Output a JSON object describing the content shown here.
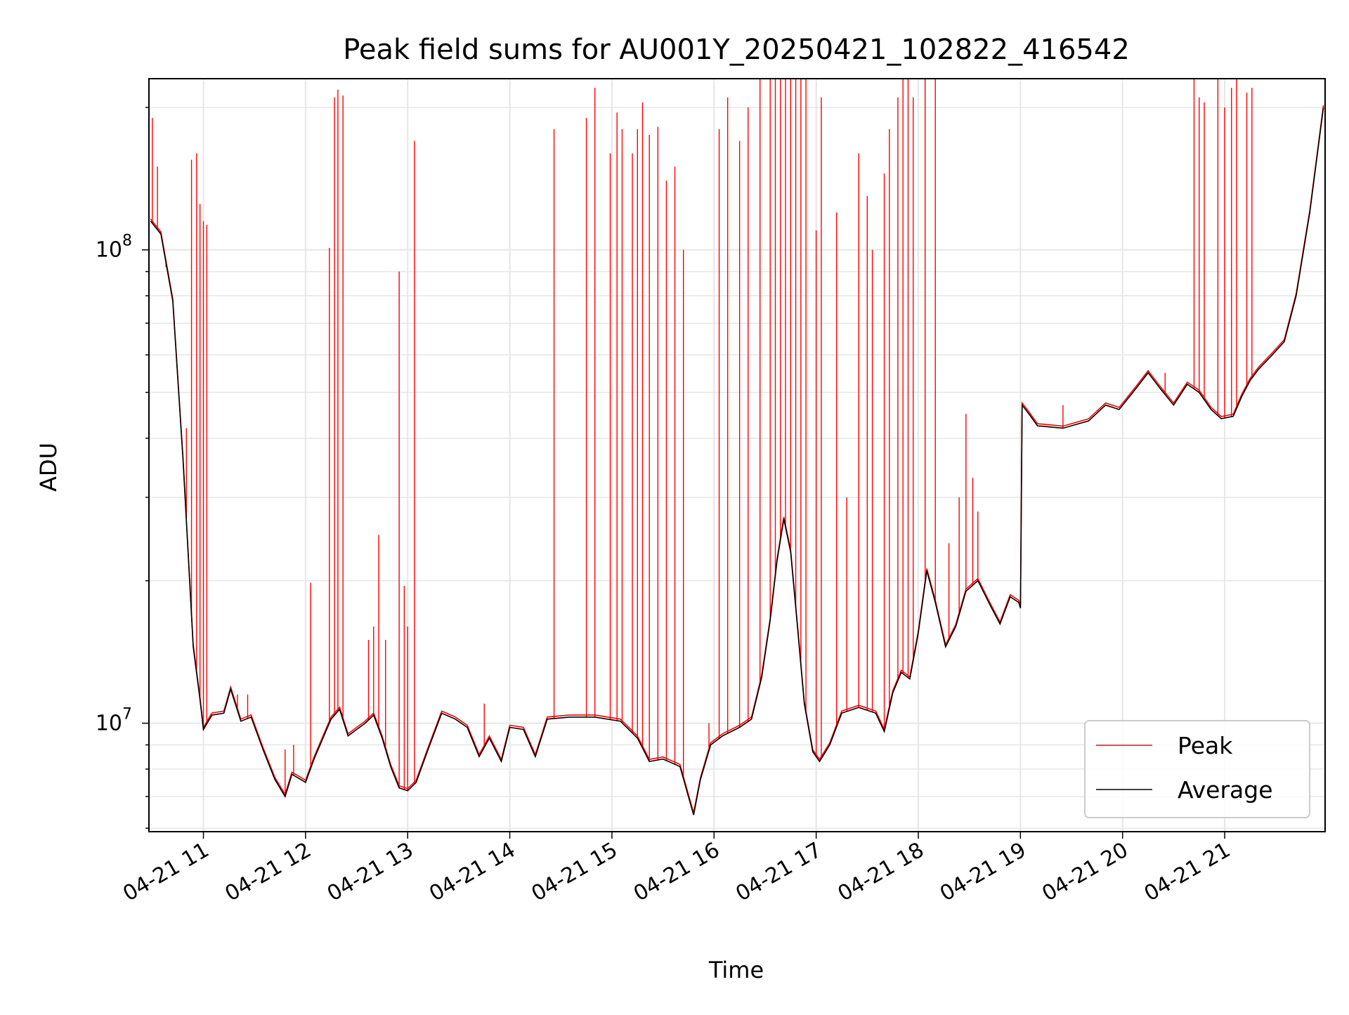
{
  "chart_data": {
    "type": "line",
    "title": "Peak field sums for AU001Y_20250421_102822_416542",
    "xlabel": "Time",
    "ylabel": "ADU",
    "y_scale": "log",
    "ylim": [
      5900000,
      230000000
    ],
    "xlim": [
      "2025-04-21 10:28",
      "2025-04-21 21:59"
    ],
    "x_ticks": [
      "04-21 11",
      "04-21 12",
      "04-21 13",
      "04-21 14",
      "04-21 15",
      "04-21 16",
      "04-21 17",
      "04-21 18",
      "04-21 19",
      "04-21 20",
      "04-21 21"
    ],
    "y_ticks": [
      {
        "value": 10000000,
        "base": "10",
        "exp": "7"
      },
      {
        "value": 100000000,
        "base": "10",
        "exp": "8"
      }
    ],
    "grid": true,
    "legend_position": "bottom-right",
    "series": [
      {
        "name": "Average",
        "color": "#000000",
        "points": [
          [
            "2025-04-21 10:29",
            115000000
          ],
          [
            "2025-04-21 10:35",
            108000000
          ],
          [
            "2025-04-21 10:42",
            78000000
          ],
          [
            "2025-04-21 10:48",
            36000000
          ],
          [
            "2025-04-21 10:54",
            14500000
          ],
          [
            "2025-04-21 10:58",
            11200000
          ],
          [
            "2025-04-21 11:00",
            9700000
          ],
          [
            "2025-04-21 11:05",
            10400000
          ],
          [
            "2025-04-21 11:12",
            10500000
          ],
          [
            "2025-04-21 11:16",
            11800000
          ],
          [
            "2025-04-21 11:22",
            10100000
          ],
          [
            "2025-04-21 11:28",
            10300000
          ],
          [
            "2025-04-21 11:35",
            8800000
          ],
          [
            "2025-04-21 11:42",
            7600000
          ],
          [
            "2025-04-21 11:48",
            7000000
          ],
          [
            "2025-04-21 11:52",
            7800000
          ],
          [
            "2025-04-21 12:00",
            7500000
          ],
          [
            "2025-04-21 12:05",
            8400000
          ],
          [
            "2025-04-21 12:15",
            10200000
          ],
          [
            "2025-04-21 12:20",
            10700000
          ],
          [
            "2025-04-21 12:25",
            9400000
          ],
          [
            "2025-04-21 12:30",
            9700000
          ],
          [
            "2025-04-21 12:35",
            10000000
          ],
          [
            "2025-04-21 12:40",
            10400000
          ],
          [
            "2025-04-21 12:45",
            9300000
          ],
          [
            "2025-04-21 12:50",
            8100000
          ],
          [
            "2025-04-21 12:55",
            7300000
          ],
          [
            "2025-04-21 13:00",
            7200000
          ],
          [
            "2025-04-21 13:05",
            7500000
          ],
          [
            "2025-04-21 13:12",
            8800000
          ],
          [
            "2025-04-21 13:20",
            10500000
          ],
          [
            "2025-04-21 13:28",
            10200000
          ],
          [
            "2025-04-21 13:35",
            9800000
          ],
          [
            "2025-04-21 13:42",
            8500000
          ],
          [
            "2025-04-21 13:48",
            9300000
          ],
          [
            "2025-04-21 13:55",
            8300000
          ],
          [
            "2025-04-21 14:00",
            9800000
          ],
          [
            "2025-04-21 14:08",
            9700000
          ],
          [
            "2025-04-21 14:15",
            8500000
          ],
          [
            "2025-04-21 14:22",
            10200000
          ],
          [
            "2025-04-21 14:35",
            10300000
          ],
          [
            "2025-04-21 14:50",
            10300000
          ],
          [
            "2025-04-21 15:05",
            10100000
          ],
          [
            "2025-04-21 15:15",
            9300000
          ],
          [
            "2025-04-21 15:22",
            8300000
          ],
          [
            "2025-04-21 15:30",
            8400000
          ],
          [
            "2025-04-21 15:40",
            8100000
          ],
          [
            "2025-04-21 15:48",
            6400000
          ],
          [
            "2025-04-21 15:52",
            7600000
          ],
          [
            "2025-04-21 15:58",
            9000000
          ],
          [
            "2025-04-21 16:05",
            9400000
          ],
          [
            "2025-04-21 16:15",
            9800000
          ],
          [
            "2025-04-21 16:22",
            10200000
          ],
          [
            "2025-04-21 16:28",
            12500000
          ],
          [
            "2025-04-21 16:33",
            16500000
          ],
          [
            "2025-04-21 16:37",
            22000000
          ],
          [
            "2025-04-21 16:41",
            27000000
          ],
          [
            "2025-04-21 16:45",
            23000000
          ],
          [
            "2025-04-21 16:49",
            16000000
          ],
          [
            "2025-04-21 16:53",
            11000000
          ],
          [
            "2025-04-21 16:58",
            8700000
          ],
          [
            "2025-04-21 17:02",
            8300000
          ],
          [
            "2025-04-21 17:08",
            9000000
          ],
          [
            "2025-04-21 17:15",
            10500000
          ],
          [
            "2025-04-21 17:25",
            10800000
          ],
          [
            "2025-04-21 17:35",
            10500000
          ],
          [
            "2025-04-21 17:40",
            9600000
          ],
          [
            "2025-04-21 17:45",
            11600000
          ],
          [
            "2025-04-21 17:50",
            12800000
          ],
          [
            "2025-04-21 17:55",
            12400000
          ],
          [
            "2025-04-21 18:00",
            15500000
          ],
          [
            "2025-04-21 18:05",
            21000000
          ],
          [
            "2025-04-21 18:10",
            18000000
          ],
          [
            "2025-04-21 18:16",
            14500000
          ],
          [
            "2025-04-21 18:22",
            16000000
          ],
          [
            "2025-04-21 18:28",
            19000000
          ],
          [
            "2025-04-21 18:35",
            20000000
          ],
          [
            "2025-04-21 18:42",
            17800000
          ],
          [
            "2025-04-21 18:48",
            16200000
          ],
          [
            "2025-04-21 18:54",
            18500000
          ],
          [
            "2025-04-21 18:59",
            18000000
          ],
          [
            "2025-04-21 19:00",
            17500000
          ],
          [
            "2025-04-21 19:01",
            47000000
          ],
          [
            "2025-04-21 19:05",
            45000000
          ],
          [
            "2025-04-21 19:10",
            42500000
          ],
          [
            "2025-04-21 19:25",
            42000000
          ],
          [
            "2025-04-21 19:40",
            43500000
          ],
          [
            "2025-04-21 19:50",
            47000000
          ],
          [
            "2025-04-21 19:58",
            46000000
          ],
          [
            "2025-04-21 20:08",
            51000000
          ],
          [
            "2025-04-21 20:15",
            55000000
          ],
          [
            "2025-04-21 20:22",
            51000000
          ],
          [
            "2025-04-21 20:30",
            47000000
          ],
          [
            "2025-04-21 20:38",
            52000000
          ],
          [
            "2025-04-21 20:45",
            50000000
          ],
          [
            "2025-04-21 20:52",
            46000000
          ],
          [
            "2025-04-21 20:58",
            44000000
          ],
          [
            "2025-04-21 21:05",
            44500000
          ],
          [
            "2025-04-21 21:10",
            49000000
          ],
          [
            "2025-04-21 21:15",
            53000000
          ],
          [
            "2025-04-21 21:20",
            56000000
          ],
          [
            "2025-04-21 21:28",
            60000000
          ],
          [
            "2025-04-21 21:35",
            64000000
          ],
          [
            "2025-04-21 21:42",
            80000000
          ],
          [
            "2025-04-21 21:50",
            120000000
          ],
          [
            "2025-04-21 21:58",
            200000000
          ]
        ]
      },
      {
        "name": "Peak",
        "color": "#ff0000",
        "spikes": [
          [
            "2025-04-21 10:30",
            190000000
          ],
          [
            "2025-04-21 10:33",
            150000000
          ],
          [
            "2025-04-21 10:38",
            92000000
          ],
          [
            "2025-04-21 10:44",
            60000000
          ],
          [
            "2025-04-21 10:50",
            42000000
          ],
          [
            "2025-04-21 10:53",
            155000000
          ],
          [
            "2025-04-21 10:56",
            160000000
          ],
          [
            "2025-04-21 10:58",
            125000000
          ],
          [
            "2025-04-21 11:00",
            115000000
          ],
          [
            "2025-04-21 11:02",
            113000000
          ],
          [
            "2025-04-21 11:20",
            11500000
          ],
          [
            "2025-04-21 11:26",
            11500000
          ],
          [
            "2025-04-21 11:48",
            8800000
          ],
          [
            "2025-04-21 11:53",
            9000000
          ],
          [
            "2025-04-21 12:03",
            19800000
          ],
          [
            "2025-04-21 12:14",
            101000000
          ],
          [
            "2025-04-21 12:17",
            210000000
          ],
          [
            "2025-04-21 12:19",
            218000000
          ],
          [
            "2025-04-21 12:22",
            212000000
          ],
          [
            "2025-04-21 12:37",
            15000000
          ],
          [
            "2025-04-21 12:40",
            16000000
          ],
          [
            "2025-04-21 12:43",
            25000000
          ],
          [
            "2025-04-21 12:47",
            15000000
          ],
          [
            "2025-04-21 12:55",
            90000000
          ],
          [
            "2025-04-21 12:58",
            19500000
          ],
          [
            "2025-04-21 13:00",
            16000000
          ],
          [
            "2025-04-21 13:04",
            170000000
          ],
          [
            "2025-04-21 13:45",
            11000000
          ],
          [
            "2025-04-21 14:26",
            180000000
          ],
          [
            "2025-04-21 14:45",
            190000000
          ],
          [
            "2025-04-21 14:50",
            220000000
          ],
          [
            "2025-04-21 14:59",
            160000000
          ],
          [
            "2025-04-21 15:03",
            195000000
          ],
          [
            "2025-04-21 15:06",
            180000000
          ],
          [
            "2025-04-21 15:12",
            160000000
          ],
          [
            "2025-04-21 15:15",
            180000000
          ],
          [
            "2025-04-21 15:18",
            205000000
          ],
          [
            "2025-04-21 15:22",
            175000000
          ],
          [
            "2025-04-21 15:27",
            182000000
          ],
          [
            "2025-04-21 15:32",
            140000000
          ],
          [
            "2025-04-21 15:37",
            150000000
          ],
          [
            "2025-04-21 15:42",
            100000000
          ],
          [
            "2025-04-21 15:57",
            10000000
          ],
          [
            "2025-04-21 16:03",
            180000000
          ],
          [
            "2025-04-21 16:08",
            210000000
          ],
          [
            "2025-04-21 16:15",
            170000000
          ],
          [
            "2025-04-21 16:20",
            200000000
          ],
          [
            "2025-04-21 16:27",
            230000000
          ],
          [
            "2025-04-21 16:33",
            230000000
          ],
          [
            "2025-04-21 16:36",
            230000000
          ],
          [
            "2025-04-21 16:39",
            230000000
          ],
          [
            "2025-04-21 16:42",
            230000000
          ],
          [
            "2025-04-21 16:45",
            230000000
          ],
          [
            "2025-04-21 16:48",
            230000000
          ],
          [
            "2025-04-21 16:51",
            230000000
          ],
          [
            "2025-04-21 16:54",
            230000000
          ],
          [
            "2025-04-21 17:00",
            110000000
          ],
          [
            "2025-04-21 17:03",
            210000000
          ],
          [
            "2025-04-21 17:12",
            120000000
          ],
          [
            "2025-04-21 17:18",
            30000000
          ],
          [
            "2025-04-21 17:25",
            160000000
          ],
          [
            "2025-04-21 17:30",
            130000000
          ],
          [
            "2025-04-21 17:33",
            100000000
          ],
          [
            "2025-04-21 17:40",
            145000000
          ],
          [
            "2025-04-21 17:43",
            180000000
          ],
          [
            "2025-04-21 17:48",
            210000000
          ],
          [
            "2025-04-21 17:51",
            230000000
          ],
          [
            "2025-04-21 17:54",
            230000000
          ],
          [
            "2025-04-21 17:57",
            210000000
          ],
          [
            "2025-04-21 18:04",
            230000000
          ],
          [
            "2025-04-21 18:10",
            230000000
          ],
          [
            "2025-04-21 18:18",
            24000000
          ],
          [
            "2025-04-21 18:24",
            30000000
          ],
          [
            "2025-04-21 18:28",
            45000000
          ],
          [
            "2025-04-21 18:32",
            33000000
          ],
          [
            "2025-04-21 18:35",
            28000000
          ],
          [
            "2025-04-21 19:25",
            47000000
          ],
          [
            "2025-04-21 20:25",
            55000000
          ],
          [
            "2025-04-21 20:42",
            230000000
          ],
          [
            "2025-04-21 20:45",
            210000000
          ],
          [
            "2025-04-21 20:48",
            205000000
          ],
          [
            "2025-04-21 20:56",
            230000000
          ],
          [
            "2025-04-21 21:00",
            200000000
          ],
          [
            "2025-04-21 21:04",
            220000000
          ],
          [
            "2025-04-21 21:07",
            230000000
          ],
          [
            "2025-04-21 21:13",
            215000000
          ],
          [
            "2025-04-21 21:16",
            220000000
          ]
        ]
      }
    ]
  }
}
